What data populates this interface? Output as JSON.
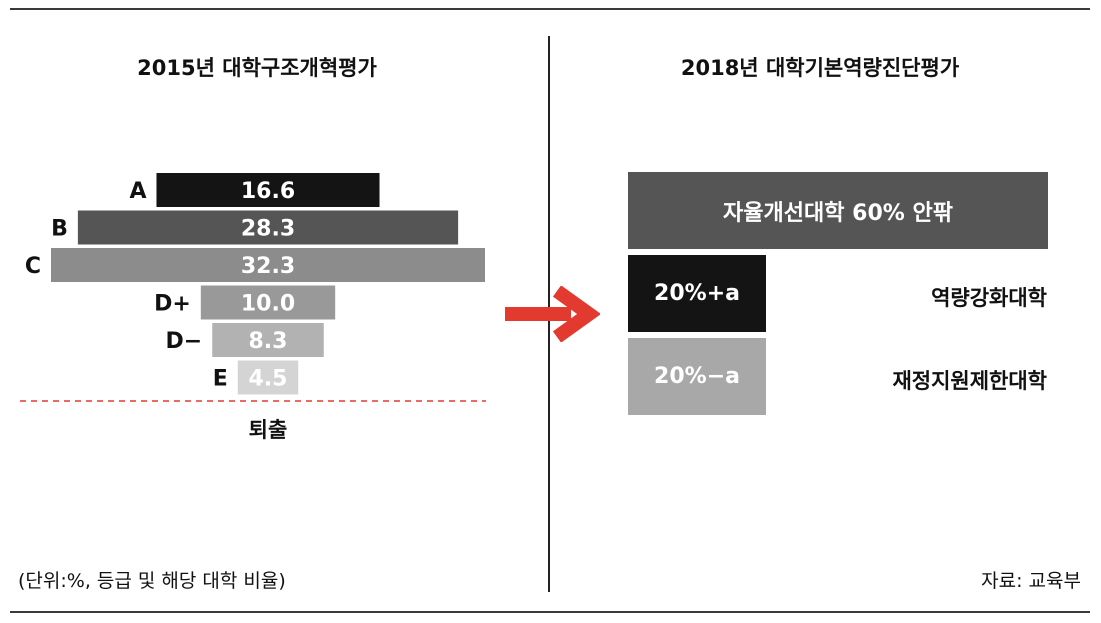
{
  "left": {
    "title": "2015년 대학구조개혁평가",
    "note": "(단위:%, 등급 및 해당 대학 비율)"
  },
  "right": {
    "title": "2018년 대학기본역량진단평가",
    "note": "자료: 교육부",
    "top_box": "자율개선대학 60% 안팎",
    "plus_box": "20%+a",
    "plus_label": "역량강화대학",
    "minus_box": "20%−a",
    "minus_label": "재정지원제한대학"
  },
  "colors": {
    "arrow": "#e23a2e",
    "cutoff_line": "#e23a2e"
  },
  "chart_data": {
    "type": "bar",
    "orientation": "horizontal-centered",
    "categories": [
      "A",
      "B",
      "C",
      "D+",
      "D−",
      "E"
    ],
    "values": [
      16.6,
      28.3,
      32.3,
      10.0,
      8.3,
      4.5
    ],
    "value_labels": [
      "16.6",
      "28.3",
      "32.3",
      "10.0",
      "8.3",
      "4.5"
    ],
    "colors": [
      "#141414",
      "#555555",
      "#8c8c8c",
      "#999999",
      "#b2b2b2",
      "#d4d4d4"
    ],
    "cutoff_label": "퇴출",
    "xlim": [
      0,
      32.3
    ]
  }
}
